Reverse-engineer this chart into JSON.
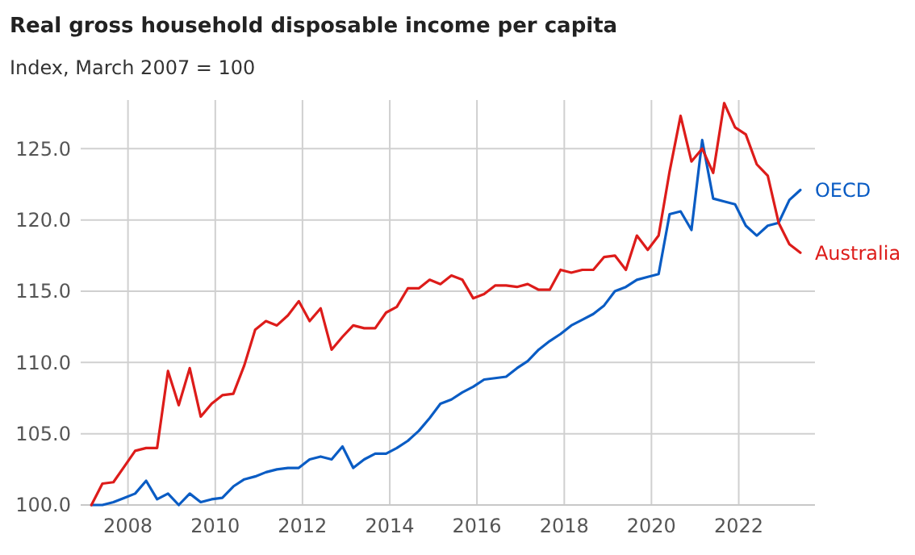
{
  "chart_data": {
    "type": "line",
    "title": "Real gross household disposable income per capita",
    "subtitle": "Index, March 2007 = 100",
    "x": [
      "2007-03",
      "2007-06",
      "2007-09",
      "2007-12",
      "2008-03",
      "2008-06",
      "2008-09",
      "2008-12",
      "2009-03",
      "2009-06",
      "2009-09",
      "2009-12",
      "2010-03",
      "2010-06",
      "2010-09",
      "2010-12",
      "2011-03",
      "2011-06",
      "2011-09",
      "2011-12",
      "2012-03",
      "2012-06",
      "2012-09",
      "2012-12",
      "2013-03",
      "2013-06",
      "2013-09",
      "2013-12",
      "2014-03",
      "2014-06",
      "2014-09",
      "2014-12",
      "2015-03",
      "2015-06",
      "2015-09",
      "2015-12",
      "2016-03",
      "2016-06",
      "2016-09",
      "2016-12",
      "2017-03",
      "2017-06",
      "2017-09",
      "2017-12",
      "2018-03",
      "2018-06",
      "2018-09",
      "2018-12",
      "2019-03",
      "2019-06",
      "2019-09",
      "2019-12",
      "2020-03",
      "2020-06",
      "2020-09",
      "2020-12",
      "2021-03",
      "2021-06",
      "2021-09",
      "2021-12",
      "2022-03",
      "2022-06",
      "2022-09",
      "2022-12",
      "2023-03",
      "2023-06"
    ],
    "series": [
      {
        "name": "OECD",
        "color": "#0a5cc4",
        "values": [
          100.0,
          100.0,
          100.2,
          100.5,
          100.8,
          101.7,
          100.4,
          100.8,
          100.0,
          100.8,
          100.2,
          100.4,
          100.5,
          101.3,
          101.8,
          102.0,
          102.3,
          102.5,
          102.6,
          102.6,
          103.2,
          103.4,
          103.2,
          104.1,
          102.6,
          103.2,
          103.6,
          103.6,
          104.0,
          104.5,
          105.2,
          106.1,
          107.1,
          107.4,
          107.9,
          108.3,
          108.8,
          108.9,
          109.0,
          109.6,
          110.1,
          110.9,
          111.5,
          112.0,
          112.6,
          113.0,
          113.4,
          114.0,
          115.0,
          115.3,
          115.8,
          116.0,
          116.2,
          120.4,
          120.6,
          119.3,
          125.6,
          121.5,
          121.3,
          121.1,
          119.6,
          118.9,
          119.6,
          119.8,
          121.4,
          122.1
        ]
      },
      {
        "name": "Australia",
        "color": "#dd1c1a",
        "values": [
          100.0,
          101.5,
          101.6,
          102.7,
          103.8,
          104.0,
          104.0,
          109.4,
          107.0,
          109.6,
          106.2,
          107.1,
          107.7,
          107.8,
          109.8,
          112.3,
          112.9,
          112.6,
          113.3,
          114.3,
          112.9,
          113.8,
          110.9,
          111.8,
          112.6,
          112.4,
          112.4,
          113.5,
          113.9,
          115.2,
          115.2,
          115.8,
          115.5,
          116.1,
          115.8,
          114.5,
          114.8,
          115.4,
          115.4,
          115.3,
          115.5,
          115.1,
          115.1,
          116.5,
          116.3,
          116.5,
          116.5,
          117.4,
          117.5,
          116.5,
          118.9,
          117.9,
          118.9,
          123.4,
          127.3,
          124.1,
          125.0,
          123.3,
          128.2,
          126.5,
          126.0,
          123.9,
          123.1,
          119.8,
          118.3,
          117.7
        ]
      }
    ],
    "xlim": [
      "2006-12",
      "2023-10"
    ],
    "xticks": [
      "2008",
      "2010",
      "2012",
      "2014",
      "2016",
      "2018",
      "2020",
      "2022"
    ],
    "ylim": [
      100,
      128.3
    ],
    "yticks": [
      {
        "value": 100,
        "label": "100.0"
      },
      {
        "value": 105,
        "label": "105.0"
      },
      {
        "value": 110,
        "label": "110.0"
      },
      {
        "value": 115,
        "label": "115.0"
      },
      {
        "value": 120,
        "label": "120.0"
      },
      {
        "value": 125,
        "label": "125.0"
      }
    ],
    "grid": true,
    "line_style": "solid",
    "marker": "none"
  }
}
